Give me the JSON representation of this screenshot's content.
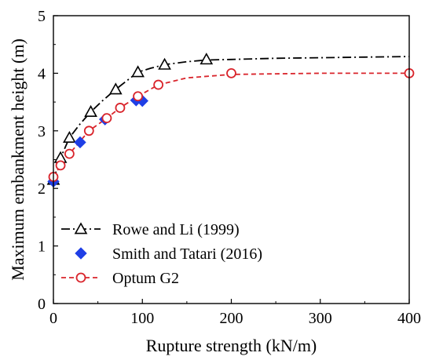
{
  "chart_data": {
    "type": "line",
    "xlabel": "Rupture strength (kN/m)",
    "ylabel": "Maximum embankment height (m)",
    "xlim": [
      0,
      400
    ],
    "ylim": [
      0,
      5
    ],
    "xticks": [
      0,
      100,
      200,
      300,
      400
    ],
    "yticks": [
      0,
      1,
      2,
      3,
      4,
      5
    ],
    "xtick_labels": [
      "0",
      "100",
      "200",
      "300",
      "400"
    ],
    "ytick_labels": [
      "0",
      "1",
      "2",
      "3",
      "4",
      "5"
    ],
    "grid": false,
    "legend_position": "bottom-left",
    "series": [
      {
        "name": "Rowe and  Li (1999)",
        "color": "#000000",
        "line_style": "dash-dot",
        "marker": "triangle-open",
        "x": [
          0,
          8,
          18,
          42,
          70,
          95,
          125,
          172
        ],
        "y": [
          2.15,
          2.53,
          2.88,
          3.33,
          3.72,
          4.02,
          4.15,
          4.24
        ],
        "curve_x": [
          0,
          8,
          18,
          30,
          42,
          55,
          70,
          85,
          95,
          110,
          125,
          150,
          172,
          200,
          250,
          300,
          350,
          400
        ],
        "curve_y": [
          2.15,
          2.53,
          2.88,
          3.12,
          3.33,
          3.52,
          3.72,
          3.9,
          4.02,
          4.09,
          4.15,
          4.2,
          4.23,
          4.24,
          4.26,
          4.27,
          4.28,
          4.29
        ]
      },
      {
        "name": "Smith and Tatari (2016)",
        "color": "#1f3fe6",
        "line_style": "none",
        "marker": "diamond-filled",
        "x": [
          0,
          30,
          58,
          93,
          100
        ],
        "y": [
          2.12,
          2.8,
          3.2,
          3.53,
          3.52
        ]
      },
      {
        "name": "Optum G2",
        "color": "#d9242b",
        "line_style": "dashed",
        "marker": "circle-open",
        "x": [
          0,
          8,
          18,
          40,
          60,
          75,
          95,
          118,
          200,
          400
        ],
        "y": [
          2.2,
          2.4,
          2.6,
          3.0,
          3.22,
          3.4,
          3.6,
          3.8,
          4.0,
          4.0
        ],
        "curve_x": [
          0,
          8,
          18,
          30,
          40,
          60,
          75,
          95,
          118,
          150,
          200,
          250,
          300,
          400
        ],
        "curve_y": [
          2.2,
          2.4,
          2.6,
          2.82,
          3.0,
          3.22,
          3.4,
          3.6,
          3.8,
          3.92,
          3.98,
          3.99,
          4.0,
          4.0
        ]
      }
    ]
  }
}
